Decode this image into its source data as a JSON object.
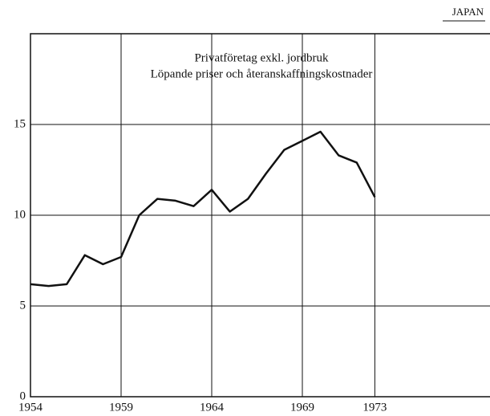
{
  "corner_label": "JAPAN",
  "chart_data": {
    "type": "line",
    "title": [
      "Privatföretag exkl. jordbruk",
      "Löpande priser och återanskaffningskostnader"
    ],
    "x": [
      1954,
      1955,
      1956,
      1957,
      1958,
      1959,
      1960,
      1961,
      1962,
      1963,
      1964,
      1965,
      1966,
      1967,
      1968,
      1969,
      1970,
      1971,
      1972,
      1973
    ],
    "series": [
      {
        "color": "#111111",
        "values": [
          6.2,
          6.1,
          6.2,
          7.8,
          7.3,
          7.7,
          10.0,
          10.9,
          10.8,
          10.5,
          11.4,
          10.2,
          10.9,
          12.3,
          13.6,
          14.1,
          14.6,
          13.3,
          12.9,
          11.0
        ]
      }
    ],
    "xlim": [
      1954,
      1979
    ],
    "xticks": [
      1954,
      1959,
      1964,
      1969,
      1973
    ],
    "ylim": [
      0,
      20
    ],
    "yticks": [
      0,
      5,
      10,
      15
    ],
    "grid": true
  }
}
